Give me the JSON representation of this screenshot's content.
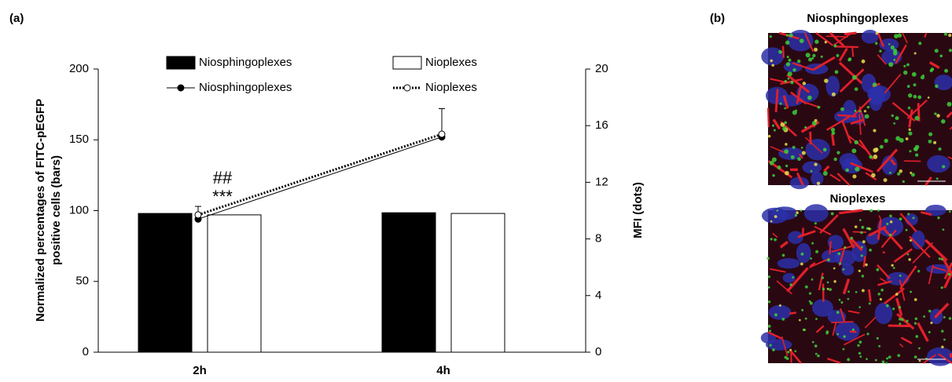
{
  "panel_a_label": "(a)",
  "panel_b_label": "(b)",
  "chart_data": {
    "type": "bar",
    "categories": [
      "2h",
      "4h"
    ],
    "ylabel": [
      "Normalized percentages of FITC-pEGFP",
      "positive cells (bars)"
    ],
    "y2label": "MFI (dots)",
    "ylim": [
      0,
      200
    ],
    "yticks": [
      0,
      50,
      100,
      150,
      200
    ],
    "y2lim": [
      0,
      20
    ],
    "y2ticks": [
      0,
      4,
      8,
      12,
      16,
      20
    ],
    "annotations": [
      "##",
      "***"
    ],
    "series": [
      {
        "name": "Niosphingoplexes",
        "type": "bar",
        "color": "#000000",
        "values": [
          98,
          98.5
        ]
      },
      {
        "name": "Nioplexes",
        "type": "bar",
        "color": "#ffffff",
        "values": [
          97,
          98
        ]
      },
      {
        "name": "Niosphingoplexes",
        "type": "line",
        "axis": "y2",
        "color": "#000000",
        "marker_fill": "#000000",
        "line_style": "solid",
        "values": [
          9.4,
          15.2
        ]
      },
      {
        "name": "Nioplexes",
        "type": "line",
        "axis": "y2",
        "color": "#000000",
        "marker_fill": "#ffffff",
        "line_style": "dotted",
        "values": [
          9.7,
          15.4
        ],
        "errors": [
          0.6,
          1.8
        ]
      }
    ]
  },
  "images": [
    {
      "title": "Niosphingoplexes"
    },
    {
      "title": "Nioplexes"
    }
  ]
}
